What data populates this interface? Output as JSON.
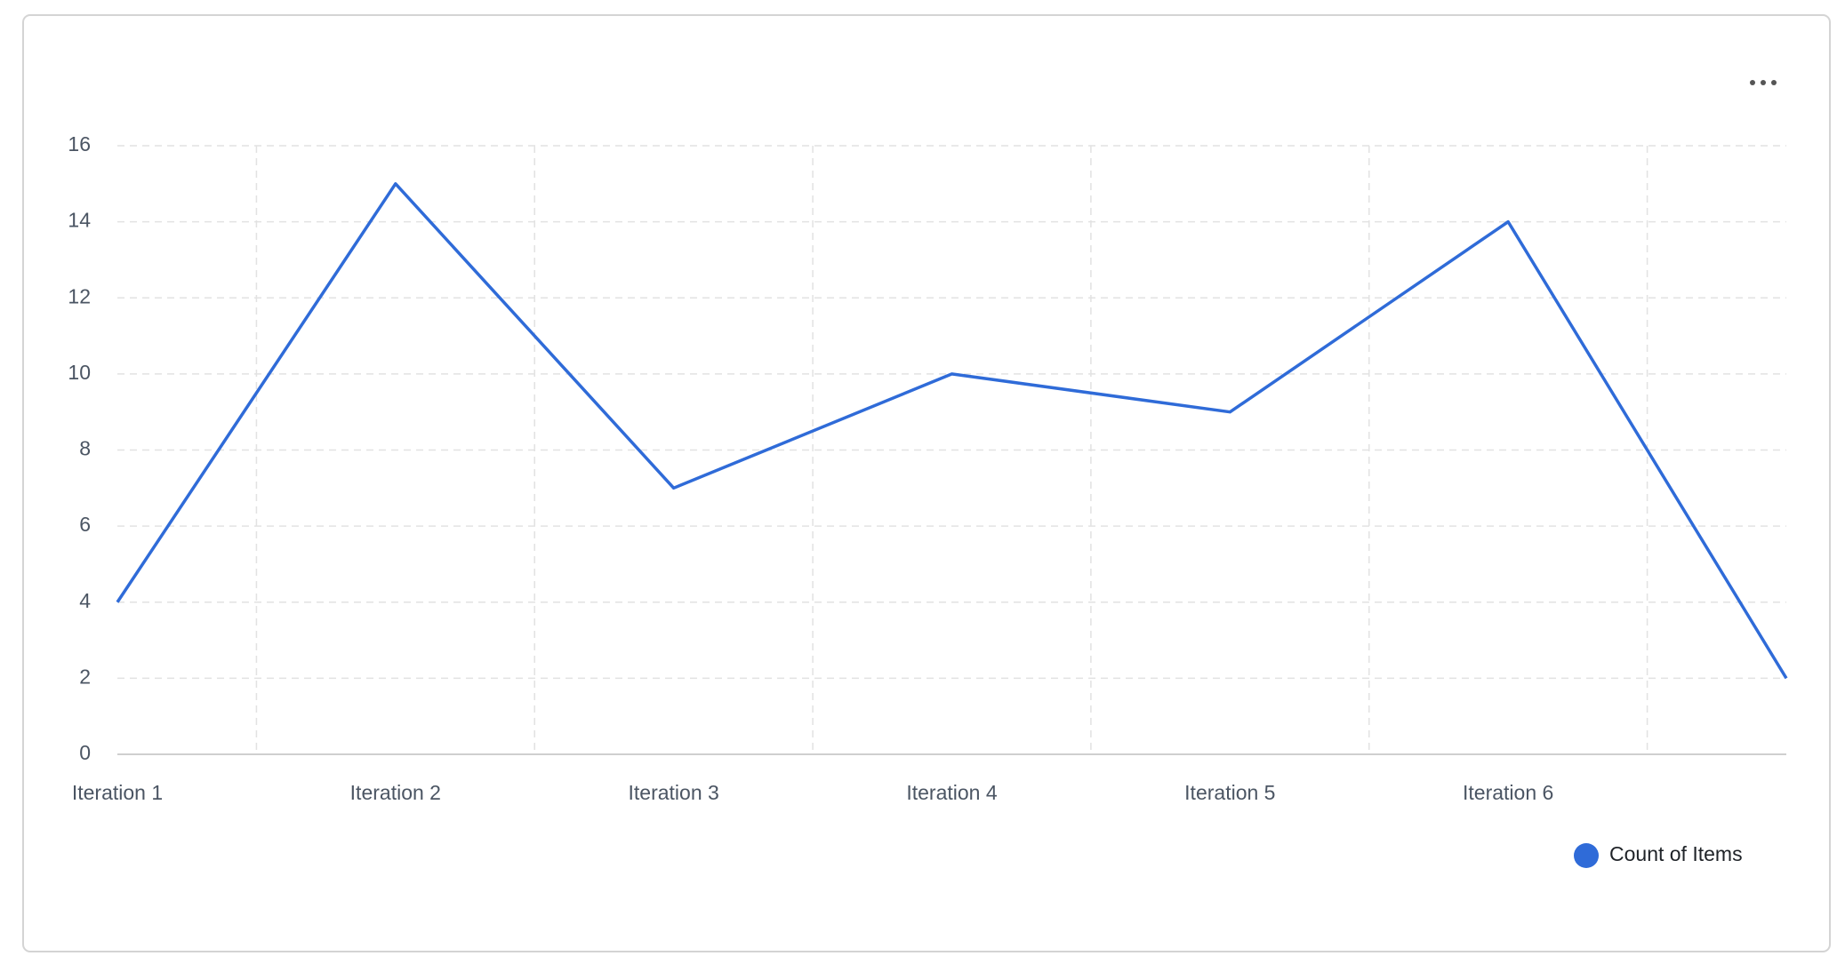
{
  "chart_data": {
    "type": "line",
    "categories": [
      "Iteration 1",
      "Iteration 2",
      "Iteration 3",
      "Iteration 4",
      "Iteration 5",
      "Iteration 6",
      null
    ],
    "series": [
      {
        "name": "Count of Items",
        "color": "#2f6bd8",
        "values": [
          4,
          15,
          7,
          10,
          9,
          14,
          2
        ]
      }
    ],
    "ylim": [
      0,
      16
    ],
    "yticks": [
      0,
      2,
      4,
      6,
      8,
      10,
      12,
      14,
      16
    ],
    "grid": true,
    "legend": "bottom-right"
  }
}
